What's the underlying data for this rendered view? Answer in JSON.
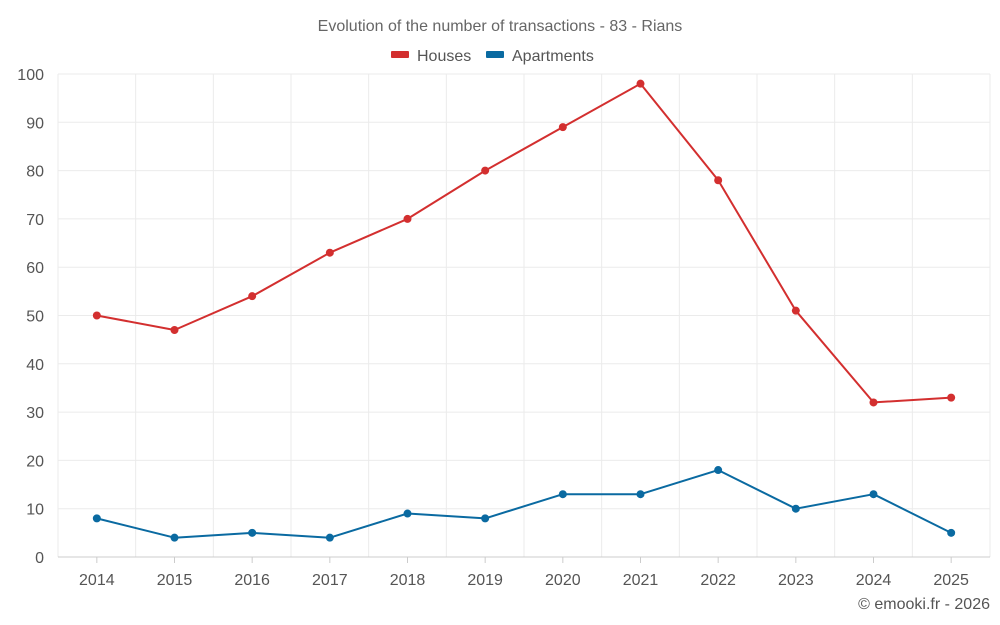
{
  "chart_data": {
    "type": "line",
    "title": "Evolution of the number of transactions - 83 - Rians",
    "categories": [
      "2014",
      "2015",
      "2016",
      "2017",
      "2018",
      "2019",
      "2020",
      "2021",
      "2022",
      "2023",
      "2024",
      "2025"
    ],
    "series": [
      {
        "name": "Houses",
        "color": "#d32f2f",
        "values": [
          50,
          47,
          54,
          63,
          70,
          80,
          89,
          98,
          78,
          51,
          32,
          33
        ]
      },
      {
        "name": "Apartments",
        "color": "#0a6aa1",
        "values": [
          8,
          4,
          5,
          4,
          9,
          8,
          13,
          13,
          18,
          10,
          13,
          5
        ]
      }
    ],
    "ylim": [
      0,
      100
    ],
    "yticks": [
      0,
      10,
      20,
      30,
      40,
      50,
      60,
      70,
      80,
      90,
      100
    ],
    "xlabel": "",
    "ylabel": "",
    "grid": true,
    "legend_position": "top"
  },
  "footer": {
    "copyright": "© emooki.fr - 2026"
  }
}
